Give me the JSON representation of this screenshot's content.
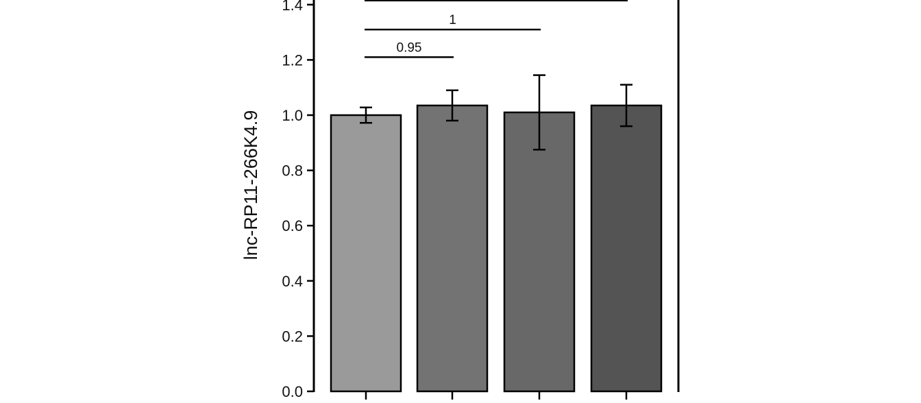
{
  "chart_data": {
    "type": "bar",
    "title": "",
    "xlabel": "",
    "ylabel": "lnc-RP11-266K4.9",
    "ylim": [
      0,
      1.45
    ],
    "yticks": [
      "0.0",
      "0.2",
      "0.4",
      "0.6",
      "0.8",
      "1.0",
      "1.2",
      "1.4"
    ],
    "categories": [
      "",
      "",
      "",
      ""
    ],
    "values": [
      1.0,
      1.035,
      1.01,
      1.035
    ],
    "errors": [
      0.028,
      0.055,
      0.135,
      0.075
    ],
    "bar_colors": [
      "#9a9a9a",
      "#737373",
      "#686868",
      "#545454"
    ],
    "grid": false,
    "legend": "none",
    "comparisons": [
      {
        "from": 0,
        "to": 1,
        "y": 1.21,
        "label": "0.95"
      },
      {
        "from": 0,
        "to": 2,
        "y": 1.31,
        "label": "1"
      },
      {
        "from": 0,
        "to": 3,
        "y": 1.415,
        "label": ""
      }
    ]
  }
}
